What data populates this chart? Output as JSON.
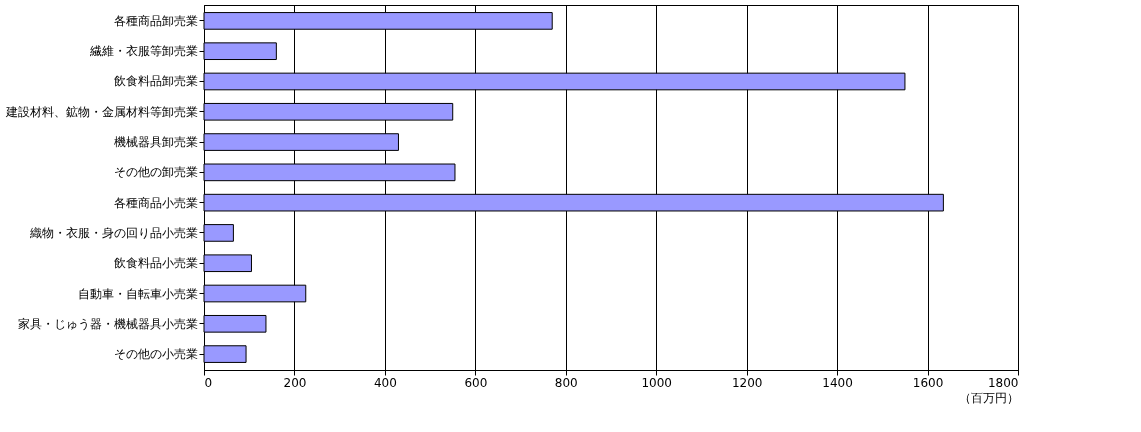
{
  "chart_data": {
    "type": "bar",
    "orientation": "horizontal",
    "xlabel": "（百万円）",
    "categories": [
      "各種商品卸売業",
      "繊維・衣服等卸売業",
      "飲食料品卸売業",
      "建設材料、鉱物・金属材料等卸売業",
      "機械器具卸売業",
      "その他の卸売業",
      "各種商品小売業",
      "織物・衣服・身の回り品小売業",
      "飲食料品小売業",
      "自動車・自転車小売業",
      "家具・じゅう器・機械器具小売業",
      "その他の小売業"
    ],
    "values": [
      770,
      160,
      1550,
      550,
      430,
      555,
      1635,
      65,
      105,
      225,
      137,
      93
    ],
    "color": "#9999ff",
    "xlim": [
      0,
      1800
    ],
    "xticks": [
      0,
      200,
      400,
      600,
      800,
      1000,
      1200,
      1400,
      1600,
      1800
    ],
    "grid": "x"
  }
}
